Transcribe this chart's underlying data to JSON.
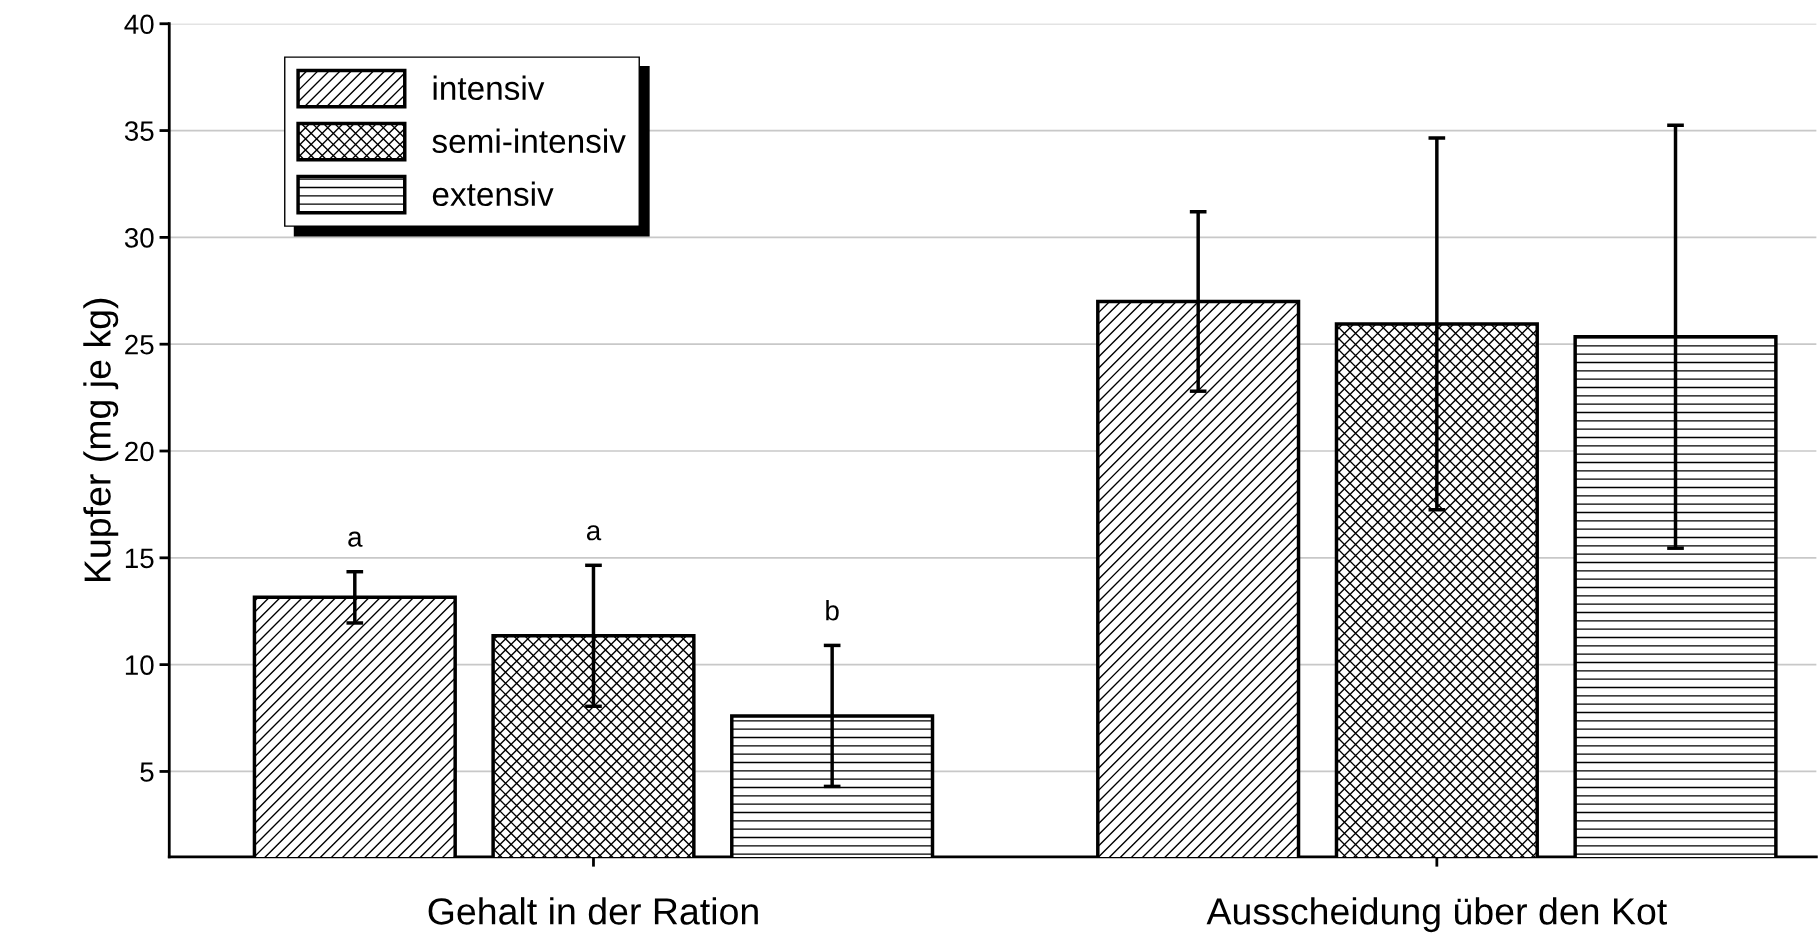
{
  "chart_data": {
    "type": "bar",
    "ylabel": "Kupfer (mg je kg)",
    "categories": [
      "Gehalt in der Ration",
      "Ausscheidung über den Kot"
    ],
    "series": [
      {
        "name": "intensiv",
        "color": "#000000",
        "values": [
          13.15,
          27.0
        ],
        "errors": [
          1.2,
          4.2
        ]
      },
      {
        "name": "semi-intensiv",
        "color": "#000000",
        "values": [
          11.35,
          25.95
        ],
        "errors": [
          3.3,
          8.7
        ]
      },
      {
        "name": "extensiv",
        "color": "#000000",
        "values": [
          7.6,
          25.35
        ],
        "errors": [
          3.3,
          9.9
        ]
      }
    ],
    "annotations": [
      "a",
      "a",
      "b"
    ],
    "ylim": [
      1,
      40
    ],
    "yticks": [
      5,
      10,
      15,
      20,
      25,
      30,
      35,
      40
    ],
    "grid": "y",
    "legend": "top left"
  }
}
